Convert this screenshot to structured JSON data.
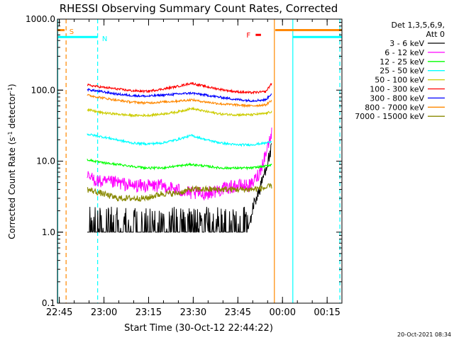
{
  "chart_data": {
    "type": "line",
    "title": "RHESSI Observing Summary Count Rates, Corrected",
    "xlabel": "Start Time (30-Oct-12 22:44:22)",
    "ylabel_main": "Corrected Count Rate (s",
    "ylabel_sup": "-1",
    "ylabel_mid": " detector",
    "ylabel_tail": ")",
    "x_unit": "minutes after 22:44:22",
    "xlim": [
      0,
      95.6
    ],
    "ylim": [
      0.1,
      1000
    ],
    "y_scale": "log",
    "x_ticks": [
      {
        "t": 0.63,
        "label": "22:45"
      },
      {
        "t": 15.63,
        "label": "23:00"
      },
      {
        "t": 30.63,
        "label": "23:15"
      },
      {
        "t": 45.63,
        "label": "23:30"
      },
      {
        "t": 60.63,
        "label": "23:45"
      },
      {
        "t": 75.63,
        "label": "00:00"
      },
      {
        "t": 90.63,
        "label": "00:15"
      }
    ],
    "y_ticks": [
      {
        "v": 0.1,
        "label": "0.1"
      },
      {
        "v": 1,
        "label": "1.0"
      },
      {
        "v": 10,
        "label": "10.0"
      },
      {
        "v": 100,
        "label": "100.0"
      },
      {
        "v": 1000,
        "label": "1000.0"
      }
    ],
    "legend_title": [
      "Det 1,3,5,6,9,",
      "Att 0"
    ],
    "legend_placement": "right",
    "series": [
      {
        "name": "3 - 6 keV",
        "color": "#000000",
        "x": [
          10,
          20,
          30,
          40,
          50,
          60,
          64,
          66,
          68,
          70,
          72
        ],
        "y": [
          1.0,
          1.0,
          1.0,
          1.0,
          1.0,
          1.0,
          1.0,
          2.5,
          4.0,
          8.0,
          15.0
        ]
      },
      {
        "name": "6 - 12 keV",
        "color": "#ff00ff",
        "x": [
          10,
          15,
          20,
          25,
          30,
          35,
          40,
          45,
          50,
          55,
          60,
          65,
          68,
          70,
          72
        ],
        "y": [
          6.0,
          5.0,
          5.0,
          4.5,
          4.5,
          4.5,
          4.0,
          3.5,
          3.5,
          4.0,
          4.5,
          4.5,
          7.0,
          13.0,
          25.0
        ]
      },
      {
        "name": "12 - 25 keV",
        "color": "#00ff00",
        "x": [
          10,
          15,
          20,
          25,
          30,
          35,
          40,
          45,
          50,
          55,
          60,
          65,
          70,
          72
        ],
        "y": [
          10.5,
          9.5,
          9.0,
          8.5,
          8.0,
          8.0,
          8.5,
          9.0,
          8.5,
          8.0,
          8.0,
          8.0,
          8.5,
          9.0
        ]
      },
      {
        "name": "25 - 50 keV",
        "color": "#00ffff",
        "x": [
          10,
          15,
          20,
          25,
          30,
          35,
          40,
          45,
          50,
          55,
          60,
          65,
          70,
          72
        ],
        "y": [
          24,
          22,
          20,
          18,
          17.5,
          18,
          20,
          23,
          20,
          18,
          17,
          17,
          18,
          19
        ]
      },
      {
        "name": "50 - 100 keV",
        "color": "#cccc00",
        "x": [
          10,
          15,
          20,
          25,
          30,
          35,
          40,
          45,
          50,
          55,
          60,
          65,
          70,
          72
        ],
        "y": [
          53,
          48,
          46,
          44,
          44,
          46,
          49,
          55,
          50,
          46,
          45,
          45,
          47,
          50
        ]
      },
      {
        "name": "100 - 300 keV",
        "color": "#ff0000",
        "x": [
          10,
          15,
          20,
          25,
          30,
          35,
          40,
          45,
          50,
          55,
          60,
          65,
          70,
          72
        ],
        "y": [
          118,
          110,
          104,
          98,
          96,
          103,
          112,
          125,
          112,
          102,
          95,
          92,
          95,
          125
        ]
      },
      {
        "name": "300 - 800 keV",
        "color": "#0000ff",
        "x": [
          10,
          15,
          20,
          25,
          30,
          35,
          40,
          45,
          50,
          55,
          60,
          65,
          70,
          72
        ],
        "y": [
          102,
          95,
          88,
          84,
          82,
          85,
          88,
          91,
          85,
          79,
          74,
          71,
          73,
          90
        ]
      },
      {
        "name": "800 - 7000 keV",
        "color": "#ff8800",
        "x": [
          10,
          15,
          20,
          25,
          30,
          35,
          40,
          45,
          50,
          55,
          60,
          65,
          70,
          72
        ],
        "y": [
          85,
          78,
          72,
          68,
          66,
          68,
          70,
          73,
          68,
          64,
          62,
          60,
          62,
          72
        ]
      },
      {
        "name": "7000 - 15000 keV",
        "color": "#888800",
        "x": [
          10,
          15,
          20,
          25,
          30,
          35,
          40,
          45,
          50,
          55,
          60,
          65,
          70,
          72
        ],
        "y": [
          4.0,
          3.5,
          3.0,
          3.0,
          3.0,
          3.5,
          3.5,
          4.0,
          4.0,
          4.0,
          4.0,
          4.0,
          4.2,
          4.5
        ]
      }
    ],
    "annotations": [
      {
        "type": "vline",
        "name": "saa-start-line",
        "t": 2.9,
        "style": "dashed",
        "color": "#ff8800"
      },
      {
        "type": "vline",
        "name": "night-start-line",
        "t": 13.5,
        "style": "dashed",
        "color": "#00ffff"
      },
      {
        "type": "vline",
        "name": "flare-line",
        "t": 72.9,
        "style": "solid",
        "color": "#ff8800"
      },
      {
        "type": "vline",
        "name": "night-end-line",
        "t": 79.1,
        "style": "solid",
        "color": "#00ffff"
      },
      {
        "type": "vline",
        "name": "plot-end-line",
        "t": 94.9,
        "style": "dashed",
        "color": "#00ffff"
      },
      {
        "type": "vline",
        "name": "plot-start-line",
        "t": 0.1,
        "style": "solid",
        "color": "#00ffff"
      },
      {
        "type": "hbar",
        "name": "saa-bar-1",
        "t0": 0,
        "t1": 2.4,
        "v": 700,
        "color": "#ff8800"
      },
      {
        "type": "hbar",
        "name": "night-bar-1",
        "t0": 0,
        "t1": 13.5,
        "v": 560,
        "color": "#00ffff"
      },
      {
        "type": "hbar",
        "name": "saa-bar-2",
        "t0": 73.2,
        "t1": 95.5,
        "v": 700,
        "color": "#ff8800"
      },
      {
        "type": "hbar",
        "name": "night-bar-2",
        "t0": 79.1,
        "t1": 95.5,
        "v": 560,
        "color": "#00ffff"
      },
      {
        "type": "hbar",
        "name": "flare-bar",
        "t0": 66.6,
        "t1": 68.4,
        "v": 600,
        "color": "#ff0000"
      },
      {
        "type": "label",
        "name": "saa-label",
        "text": "S",
        "t": 4.0,
        "v": 680,
        "color": "#ff8800"
      },
      {
        "type": "label",
        "name": "night-label",
        "text": "N",
        "t": 15.0,
        "v": 540,
        "color": "#00ffff"
      },
      {
        "type": "label",
        "name": "flare-label",
        "text": "F",
        "t": 63.5,
        "v": 600,
        "color": "#ff0000"
      }
    ],
    "footer_timestamp": "20-Oct-2021 08:34"
  }
}
